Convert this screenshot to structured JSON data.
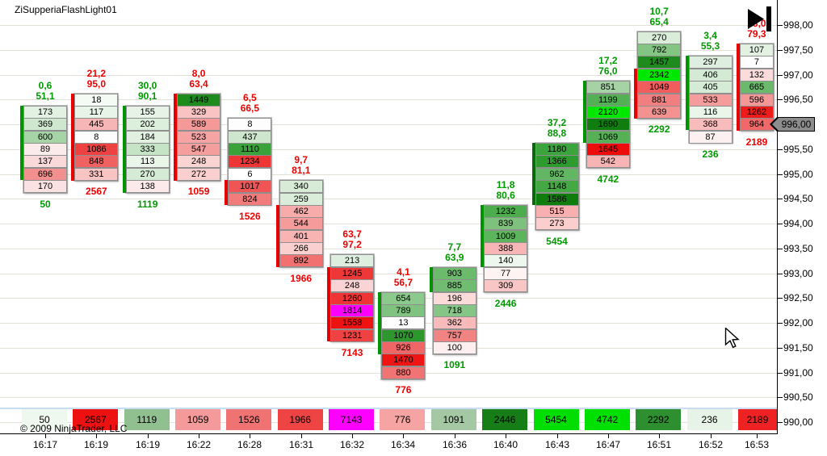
{
  "title": "ZiSupperiaFlashLight01",
  "copyright": "© 2009 NinjaTrader, LLC",
  "colors": {
    "up_text": "#009900",
    "down_text": "#ee0000",
    "bar_up": "#009400",
    "bar_down": "#e60000",
    "grid": "#e4e0d8",
    "badge_bg": "#8c8c8c"
  },
  "price_axis": {
    "labels": [
      "998,00",
      "997,50",
      "997,00",
      "996,50",
      "996,00",
      "995,50",
      "995,00",
      "994,50",
      "994,00",
      "993,50",
      "993,00",
      "992,50",
      "992,00",
      "991,50",
      "991,00",
      "990,50",
      "990,00"
    ],
    "current_price": "996,00",
    "min": 990.0,
    "max": 998.0,
    "step": 0.5
  },
  "time_axis": [
    "16:17",
    "16:19",
    "16:19",
    "16:22",
    "16:28",
    "16:31",
    "16:32",
    "16:34",
    "16:36",
    "16:40",
    "16:43",
    "16:47",
    "16:51",
    "16:52",
    "16:53"
  ],
  "chart_data": {
    "type": "footprint_volume_profile",
    "title": "ZiSupperiaFlashLight01",
    "ylabel": "price",
    "ylim": [
      990.0,
      998.0
    ],
    "grid": true,
    "price_step_per_cell": 0.25,
    "columns": [
      {
        "time": "16:17",
        "header": [
          "0,6",
          "51,1"
        ],
        "header_color": "#009900",
        "top_price": 996.25,
        "bar_color": "#009400",
        "bar_rows": [
          1,
          6
        ],
        "cells": [
          {
            "v": "173",
            "bg": "#e3f1e3"
          },
          {
            "v": "369",
            "bg": "#cfe7cf"
          },
          {
            "v": "600",
            "bg": "#a6d4a6"
          },
          {
            "v": "89",
            "bg": "#fcebeb"
          },
          {
            "v": "137",
            "bg": "#f9d9d9"
          },
          {
            "v": "696",
            "bg": "#f29090"
          },
          {
            "v": "170",
            "bg": "#fbe2e2"
          }
        ],
        "total": {
          "v": "50",
          "color": "#009900"
        },
        "box": {
          "v": "50",
          "bg": "#eff8ef"
        }
      },
      {
        "time": "16:19",
        "header": [
          "21,2",
          "95,0"
        ],
        "header_color": "#ee0000",
        "top_price": 996.5,
        "bar_color": "#e60000",
        "bar_rows": [
          1,
          7
        ],
        "cells": [
          {
            "v": "18",
            "bg": "#f4faf4"
          },
          {
            "v": "117",
            "bg": "#e7f4e7"
          },
          {
            "v": "445",
            "bg": "#f7b6b6"
          },
          {
            "v": "8",
            "bg": "#fdfdfd"
          },
          {
            "v": "1086",
            "bg": "#ee4242"
          },
          {
            "v": "848",
            "bg": "#f06262"
          },
          {
            "v": "331",
            "bg": "#f8c4c4"
          }
        ],
        "total": {
          "v": "2567",
          "color": "#ee0000"
        },
        "box": {
          "v": "2567",
          "bg": "#ee1111"
        }
      },
      {
        "time": "16:19",
        "header": [
          "30,0",
          "90,1"
        ],
        "header_color": "#009900",
        "top_price": 996.25,
        "bar_color": "#009400",
        "bar_rows": [
          1,
          7
        ],
        "cells": [
          {
            "v": "155",
            "bg": "#e6f3e6"
          },
          {
            "v": "202",
            "bg": "#dceedc"
          },
          {
            "v": "184",
            "bg": "#e1f0e1"
          },
          {
            "v": "333",
            "bg": "#c5e3c5"
          },
          {
            "v": "113",
            "bg": "#eaf6ea"
          },
          {
            "v": "270",
            "bg": "#d5ebd5"
          },
          {
            "v": "138",
            "bg": "#fce9e9"
          }
        ],
        "total": {
          "v": "1119",
          "color": "#009900"
        },
        "box": {
          "v": "1119",
          "bg": "#90bf90"
        }
      },
      {
        "time": "16:22",
        "header": [
          "8,0",
          "63,4"
        ],
        "header_color": "#ee0000",
        "top_price": 996.5,
        "bar_color": "#e60000",
        "bar_rows": [
          1,
          7
        ],
        "cells": [
          {
            "v": "1449",
            "bg": "#1d8c1d"
          },
          {
            "v": "329",
            "bg": "#f9c3c3"
          },
          {
            "v": "589",
            "bg": "#f49898"
          },
          {
            "v": "523",
            "bg": "#f5a3a3"
          },
          {
            "v": "547",
            "bg": "#f59e9e"
          },
          {
            "v": "248",
            "bg": "#fad3d3"
          },
          {
            "v": "272",
            "bg": "#facfcf"
          }
        ],
        "total": {
          "v": "1059",
          "color": "#ee0000"
        },
        "box": {
          "v": "1059",
          "bg": "#f49a9a"
        }
      },
      {
        "time": "16:28",
        "header": [
          "6,5",
          "66,5"
        ],
        "header_color": "#ee0000",
        "top_price": 996.0,
        "bar_color": "#e60000",
        "bar_rows": [
          6,
          7
        ],
        "cells": [
          {
            "v": "8",
            "bg": "#fdfdfd"
          },
          {
            "v": "437",
            "bg": "#cde6cd"
          },
          {
            "v": "1110",
            "bg": "#3aa23a"
          },
          {
            "v": "1234",
            "bg": "#ee3636"
          },
          {
            "v": "6",
            "bg": "#ffffff"
          },
          {
            "v": "1017",
            "bg": "#f05454"
          },
          {
            "v": "824",
            "bg": "#f27c7c"
          }
        ],
        "total": {
          "v": "1526",
          "color": "#ee0000"
        },
        "box": {
          "v": "1526",
          "bg": "#ef7373"
        }
      },
      {
        "time": "16:31",
        "header": [
          "9,7",
          "81,1"
        ],
        "header_color": "#ee0000",
        "top_price": 994.75,
        "bar_color": "#e60000",
        "bar_rows": [
          3,
          7
        ],
        "cells": [
          {
            "v": "340",
            "bg": "#d7ebd7"
          },
          {
            "v": "259",
            "bg": "#daedda"
          },
          {
            "v": "462",
            "bg": "#f7abab"
          },
          {
            "v": "544",
            "bg": "#f59b9b"
          },
          {
            "v": "401",
            "bg": "#f8b3b3"
          },
          {
            "v": "266",
            "bg": "#facfcf"
          },
          {
            "v": "892",
            "bg": "#f17070"
          }
        ],
        "total": {
          "v": "1966",
          "color": "#ee0000"
        },
        "box": {
          "v": "1966",
          "bg": "#ee4444"
        }
      },
      {
        "time": "16:32",
        "header": [
          "63,7",
          "97,2"
        ],
        "header_color": "#ee0000",
        "top_price": 993.25,
        "bar_color": "#e60000",
        "bar_rows": [
          2,
          7
        ],
        "cells": [
          {
            "v": "213",
            "bg": "#dfefdf"
          },
          {
            "v": "1245",
            "bg": "#ee3838"
          },
          {
            "v": "248",
            "bg": "#fad4d4"
          },
          {
            "v": "1260",
            "bg": "#ee3434"
          },
          {
            "v": "1814",
            "bg": "#ff00ff"
          },
          {
            "v": "1558",
            "bg": "#ee1212"
          },
          {
            "v": "1231",
            "bg": "#ef4343"
          }
        ],
        "total": {
          "v": "7143",
          "color": "#ee0000"
        },
        "box": {
          "v": "7143",
          "bg": "#ff00ff"
        }
      },
      {
        "time": "16:34",
        "header": [
          "4,1",
          "56,7"
        ],
        "header_color": "#ee0000",
        "top_price": 992.5,
        "bar_color": "#009400",
        "bar_rows": [
          1,
          5
        ],
        "cells": [
          {
            "v": "654",
            "bg": "#8cc98c"
          },
          {
            "v": "789",
            "bg": "#80c280"
          },
          {
            "v": "13",
            "bg": "#fefefe"
          },
          {
            "v": "1070",
            "bg": "#2d972d"
          },
          {
            "v": "926",
            "bg": "#f06666"
          },
          {
            "v": "1470",
            "bg": "#ee1515"
          },
          {
            "v": "880",
            "bg": "#f17474"
          }
        ],
        "total": {
          "v": "776",
          "color": "#ee0000"
        },
        "box": {
          "v": "776",
          "bg": "#f5a3a3"
        }
      },
      {
        "time": "16:36",
        "header": [
          "7,7",
          "63,9"
        ],
        "header_color": "#009900",
        "top_price": 993.0,
        "bar_color": "#009400",
        "bar_rows": [
          1,
          2
        ],
        "cells": [
          {
            "v": "903",
            "bg": "#6cba6c"
          },
          {
            "v": "885",
            "bg": "#70bc70"
          },
          {
            "v": "196",
            "bg": "#fbdada"
          },
          {
            "v": "718",
            "bg": "#85c585"
          },
          {
            "v": "362",
            "bg": "#f8baba"
          },
          {
            "v": "757",
            "bg": "#f28383"
          },
          {
            "v": "100",
            "bg": "#fdeff0"
          }
        ],
        "total": {
          "v": "1091",
          "color": "#009900"
        },
        "box": {
          "v": "1091",
          "bg": "#a4c7a4"
        }
      },
      {
        "time": "16:40",
        "header": [
          "11,8",
          "80,6"
        ],
        "header_color": "#009900",
        "top_price": 994.25,
        "bar_color": "#009400",
        "bar_rows": [
          1,
          5
        ],
        "cells": [
          {
            "v": "1232",
            "bg": "#4cad4c"
          },
          {
            "v": "839",
            "bg": "#7dc17d"
          },
          {
            "v": "1009",
            "bg": "#5cb45c"
          },
          {
            "v": "388",
            "bg": "#f8b5b5"
          },
          {
            "v": "140",
            "bg": "#edf7ed"
          },
          {
            "v": "77",
            "bg": "#fdf3f3"
          },
          {
            "v": "309",
            "bg": "#f9c5c5"
          }
        ],
        "total": {
          "v": "2446",
          "color": "#009900"
        },
        "box": {
          "v": "2446",
          "bg": "#177d17"
        }
      },
      {
        "time": "16:43",
        "header": [
          "37,2",
          "88,8"
        ],
        "header_color": "#009900",
        "top_price": 995.5,
        "bar_color": "#0a6a0a",
        "bar_rows": [
          1,
          5
        ],
        "cells": [
          {
            "v": "1180",
            "bg": "#3ca43c"
          },
          {
            "v": "1366",
            "bg": "#2e9b2e"
          },
          {
            "v": "962",
            "bg": "#63b663"
          },
          {
            "v": "1148",
            "bg": "#44a844"
          },
          {
            "v": "1586",
            "bg": "#0e7d0e"
          },
          {
            "v": "515",
            "bg": "#f8afaf"
          },
          {
            "v": "273",
            "bg": "#fbcece"
          }
        ],
        "total": {
          "v": "5454",
          "color": "#009900"
        },
        "box": {
          "v": "5454",
          "bg": "#00dd00"
        }
      },
      {
        "time": "16:47",
        "header": [
          "17,2",
          "76,0"
        ],
        "header_color": "#009900",
        "top_price": 996.75,
        "bar_color": "#009400",
        "bar_rows": [
          1,
          5
        ],
        "cells": [
          {
            "v": "851",
            "bg": "#a5d3a5"
          },
          {
            "v": "1199",
            "bg": "#54b054"
          },
          {
            "v": "2120",
            "bg": "#00e800"
          },
          {
            "v": "1690",
            "bg": "#0e7f0e"
          },
          {
            "v": "1069",
            "bg": "#56b156"
          },
          {
            "v": "1645",
            "bg": "#ee0b0b"
          },
          {
            "v": "542",
            "bg": "#f8b4b4"
          }
        ],
        "total": {
          "v": "4742",
          "color": "#009900"
        },
        "box": {
          "v": "4742",
          "bg": "#00e000"
        }
      },
      {
        "time": "16:51",
        "header": [
          "10,7",
          "65,4"
        ],
        "header_color": "#009900",
        "top_price": 997.75,
        "bar_color": "#e60000",
        "bar_rows": [
          4,
          7
        ],
        "cells": [
          {
            "v": "270",
            "bg": "#daedda"
          },
          {
            "v": "792",
            "bg": "#84c584"
          },
          {
            "v": "1457",
            "bg": "#1f8b1f"
          },
          {
            "v": "2342",
            "bg": "#00e800"
          },
          {
            "v": "1049",
            "bg": "#f15c5c"
          },
          {
            "v": "881",
            "bg": "#f27f7f"
          },
          {
            "v": "639",
            "bg": "#f49292"
          }
        ],
        "total": {
          "v": "2292",
          "color": "#009900"
        },
        "box": {
          "v": "2292",
          "bg": "#2d8f2d"
        }
      },
      {
        "time": "16:52",
        "header": [
          "3,4",
          "55,3"
        ],
        "header_color": "#009900",
        "top_price": 997.25,
        "bar_color": "#009400",
        "bar_rows": [
          1,
          6
        ],
        "cells": [
          {
            "v": "297",
            "bg": "#dfefdf"
          },
          {
            "v": "406",
            "bg": "#d4ead4"
          },
          {
            "v": "405",
            "bg": "#d6ebd6"
          },
          {
            "v": "533",
            "bg": "#f59d9d"
          },
          {
            "v": "116",
            "bg": "#ebf6eb"
          },
          {
            "v": "368",
            "bg": "#f9bcbc"
          },
          {
            "v": "87",
            "bg": "#fdf0f0"
          }
        ],
        "total": {
          "v": "236",
          "color": "#009900"
        },
        "box": {
          "v": "236",
          "bg": "#e7f3e7"
        }
      },
      {
        "time": "16:53",
        "header": [
          "28,0",
          "79,3"
        ],
        "header_color": "#ee0000",
        "top_price": 997.5,
        "bar_color": "#e60000",
        "bar_rows": [
          1,
          7
        ],
        "cells": [
          {
            "v": "107",
            "bg": "#e3f1e3"
          },
          {
            "v": "7",
            "bg": "#fefefe"
          },
          {
            "v": "132",
            "bg": "#fbdbdb"
          },
          {
            "v": "665",
            "bg": "#6bb96b"
          },
          {
            "v": "596",
            "bg": "#f49797"
          },
          {
            "v": "1262",
            "bg": "#ee1b1b"
          },
          {
            "v": "964",
            "bg": "#f16868"
          }
        ],
        "total": {
          "v": "2189",
          "color": "#ee0000"
        },
        "box": {
          "v": "2189",
          "bg": "#ee2222"
        }
      }
    ]
  }
}
